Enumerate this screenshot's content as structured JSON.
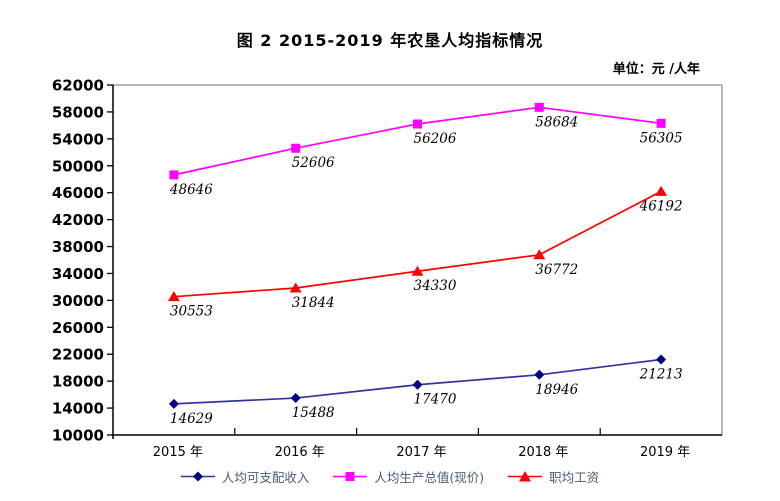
{
  "title": "图 2  2015-2019 年农垦人均指标情况",
  "unit_label": "单位：元 /人年",
  "colors": {
    "plot_border_gray": "#8C8C8C",
    "axis_black": "#000000",
    "legend_text": "#4C5B73",
    "series_navy_line": "#3333A0",
    "series_navy_marker": "#00007E",
    "series_magenta": "#FF00FF",
    "series_red": "#FF0000"
  },
  "chart_data": {
    "type": "line",
    "categories": [
      "2015 年",
      "2016 年",
      "2017 年",
      "2018 年",
      "2019 年"
    ],
    "xlabel": "",
    "ylabel": "",
    "ylim": [
      10000,
      62000
    ],
    "ytick_step": 4000,
    "yticks": [
      10000,
      14000,
      18000,
      22000,
      26000,
      30000,
      34000,
      38000,
      42000,
      46000,
      50000,
      54000,
      58000,
      62000
    ],
    "grid": false,
    "legend_position": "bottom",
    "series": [
      {
        "name": "人均可支配收入",
        "marker": "diamond",
        "line_color": "#3333A0",
        "marker_color": "#00007E",
        "values": [
          14629,
          15488,
          17470,
          18946,
          21213
        ]
      },
      {
        "name": "人均生产总值(现价)",
        "marker": "square",
        "line_color": "#FF00FF",
        "marker_color": "#FF00FF",
        "values": [
          48646,
          52606,
          56206,
          58684,
          56305
        ]
      },
      {
        "name": "职均工资",
        "marker": "triangle",
        "line_color": "#FF0000",
        "marker_color": "#FF0000",
        "values": [
          30553,
          31844,
          34330,
          36772,
          46192
        ]
      }
    ]
  }
}
